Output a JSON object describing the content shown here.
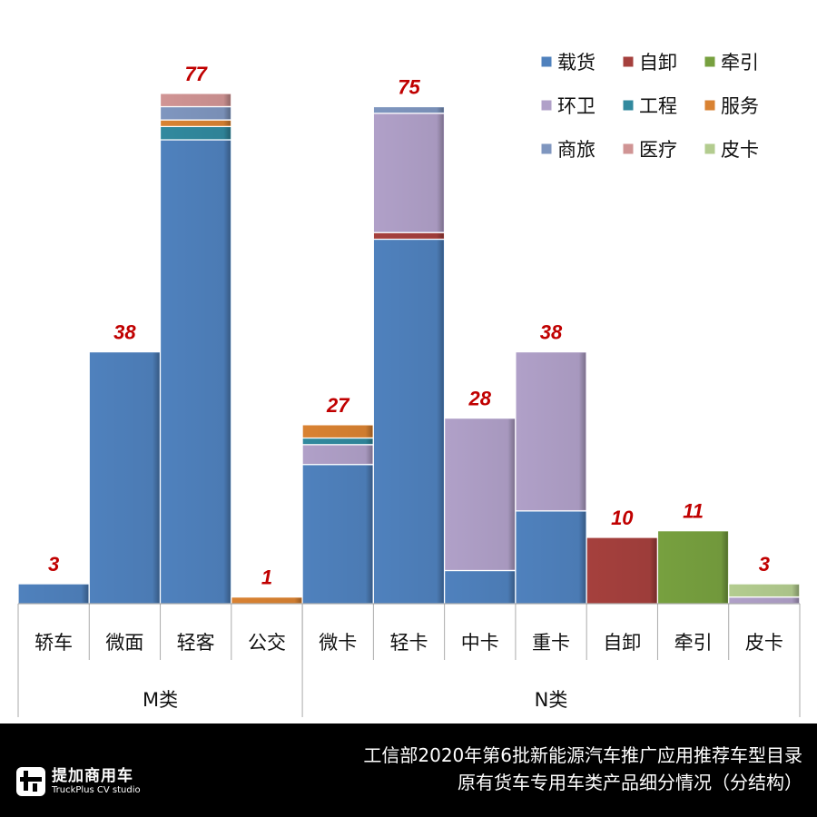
{
  "chart_data": {
    "type": "bar",
    "stacked": true,
    "categories": [
      "轿车",
      "微面",
      "轻客",
      "公交",
      "微卡",
      "轻卡",
      "中卡",
      "重卡",
      "自卸",
      "牵引",
      "皮卡"
    ],
    "groups": [
      {
        "label": "M类",
        "categories": [
          "轿车",
          "微面",
          "轻客",
          "公交"
        ]
      },
      {
        "label": "N类",
        "categories": [
          "微卡",
          "轻卡",
          "中卡",
          "重卡",
          "自卸",
          "牵引",
          "皮卡"
        ]
      }
    ],
    "totals": [
      3,
      38,
      77,
      1,
      27,
      75,
      28,
      38,
      10,
      11,
      3
    ],
    "series": [
      {
        "name": "载货",
        "color": "#4f81bd",
        "values": [
          3,
          38,
          70,
          0,
          21,
          55,
          5,
          14,
          0,
          0,
          0
        ]
      },
      {
        "name": "自卸",
        "color": "#a5403d",
        "values": [
          0,
          0,
          0,
          0,
          0,
          1,
          0,
          0,
          10,
          0,
          0
        ]
      },
      {
        "name": "牵引",
        "color": "#77a03f",
        "values": [
          0,
          0,
          0,
          0,
          0,
          0,
          0,
          0,
          0,
          11,
          0
        ]
      },
      {
        "name": "环卫",
        "color": "#b0a0c8",
        "values": [
          0,
          0,
          0,
          0,
          3,
          18,
          23,
          24,
          0,
          0,
          1
        ]
      },
      {
        "name": "工程",
        "color": "#31899e",
        "values": [
          0,
          0,
          2,
          0,
          1,
          0,
          0,
          0,
          0,
          0,
          0
        ]
      },
      {
        "name": "服务",
        "color": "#d98232",
        "values": [
          0,
          0,
          1,
          1,
          2,
          0,
          0,
          0,
          0,
          0,
          0
        ]
      },
      {
        "name": "商旅",
        "color": "#7f96bf",
        "values": [
          0,
          0,
          2,
          0,
          0,
          1,
          0,
          0,
          0,
          0,
          0
        ]
      },
      {
        "name": "医疗",
        "color": "#d09494",
        "values": [
          0,
          0,
          2,
          0,
          0,
          0,
          0,
          0,
          0,
          0,
          0
        ]
      },
      {
        "name": "皮卡",
        "color": "#b3cc8f",
        "values": [
          0,
          0,
          0,
          0,
          0,
          0,
          0,
          0,
          0,
          0,
          2
        ]
      }
    ],
    "label_color": "#c00000",
    "legend_position": "top-right",
    "grid": false
  },
  "footer": {
    "logo_cn": "提加商用车",
    "logo_en": "TruckPlus CV studio",
    "title_line1": "工信部2020年第6批新能源汽车推广应用推荐车型目录",
    "title_line2": "原有货车专用车类产品细分情况（分结构）"
  }
}
